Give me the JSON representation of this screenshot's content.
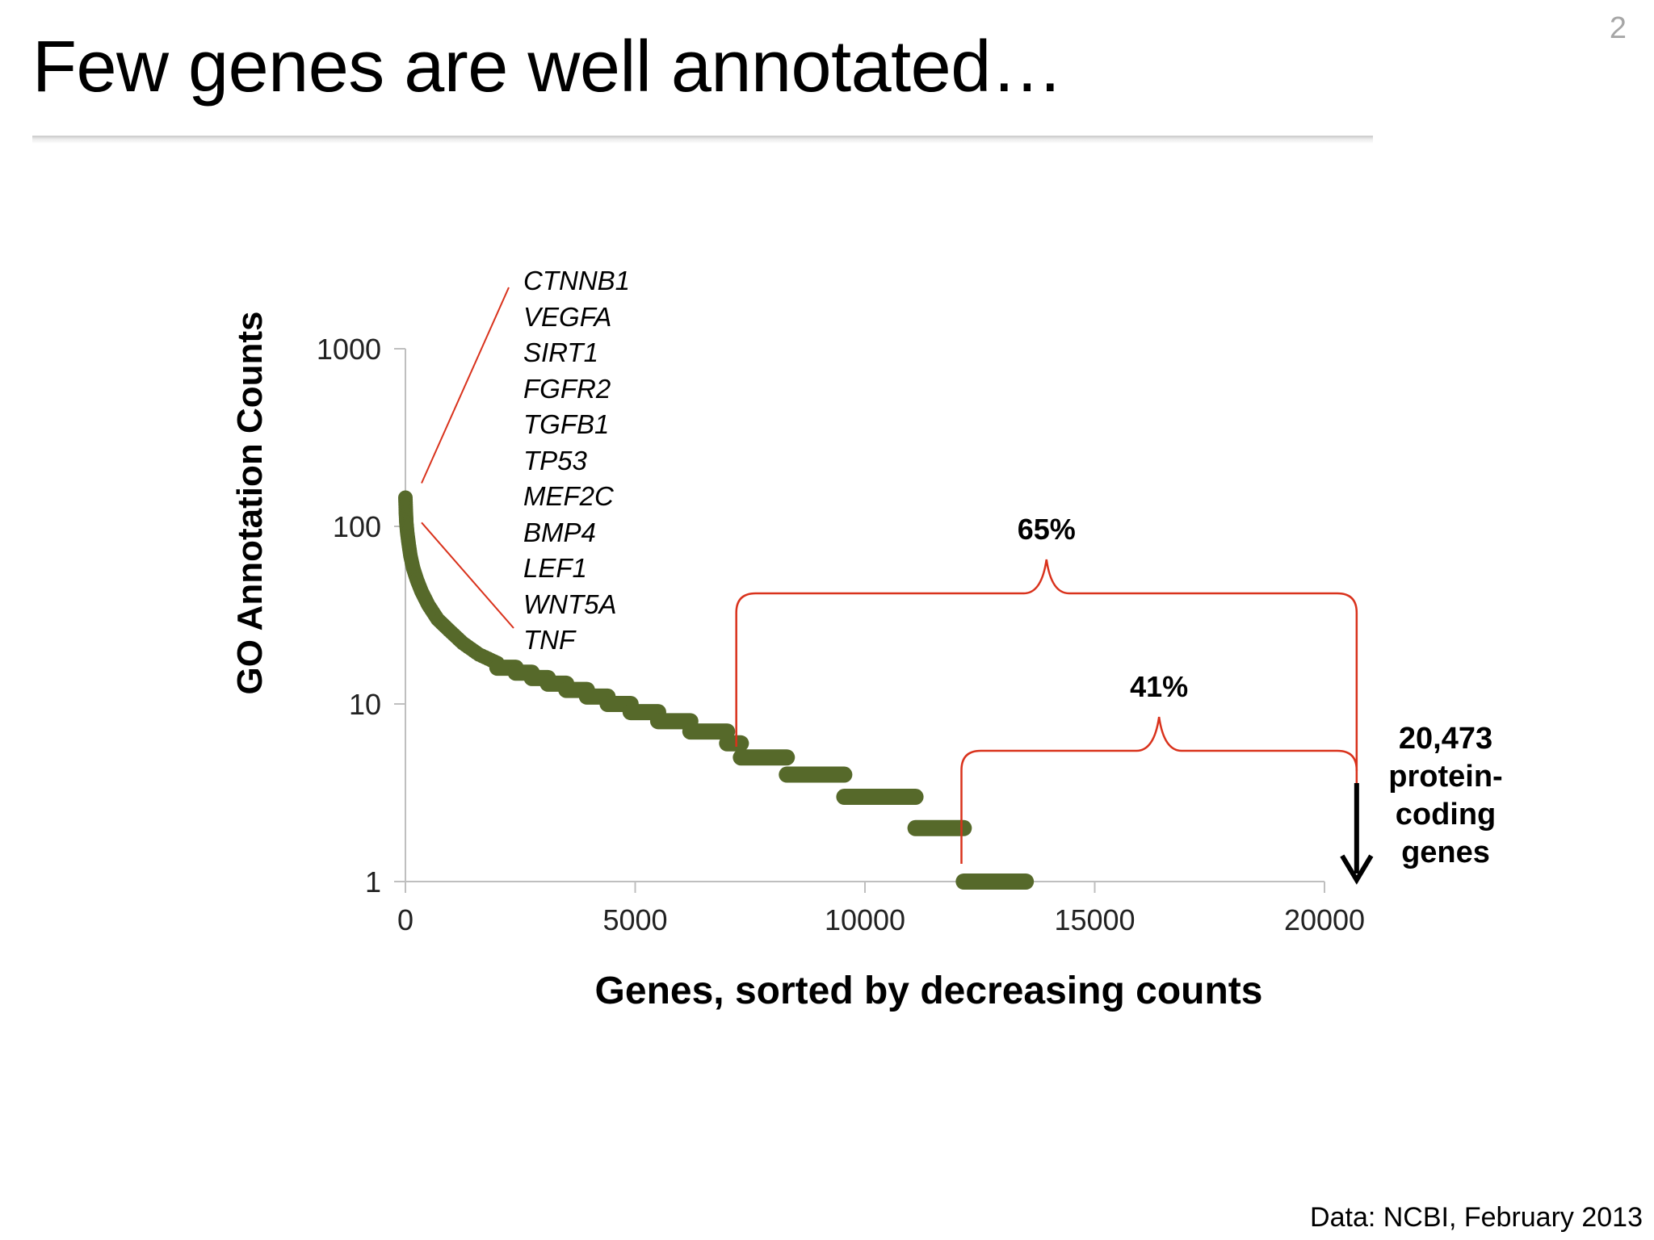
{
  "page_number": "2",
  "title": "Few genes are well annotated…",
  "source_note": "Data: NCBI, February 2013",
  "colors": {
    "points": "#56692a",
    "annotation": "#d9321c",
    "arrow": "#000000",
    "axis": "#bfbfbf"
  },
  "chart_data": {
    "type": "scatter",
    "xlabel": "Genes, sorted by decreasing counts",
    "ylabel": "GO Annotation Counts",
    "y_scale": "log",
    "xlim": [
      0,
      20000
    ],
    "ylim": [
      1,
      1000
    ],
    "x_ticks": [
      "0",
      "5000",
      "10000",
      "15000",
      "20000"
    ],
    "y_ticks": [
      "1",
      "10",
      "100",
      "1000"
    ],
    "grid": false,
    "legend": "none",
    "curve_head": [
      {
        "x": 0,
        "y": 145
      },
      {
        "x": 10,
        "y": 120
      },
      {
        "x": 20,
        "y": 105
      },
      {
        "x": 40,
        "y": 92
      },
      {
        "x": 70,
        "y": 80
      },
      {
        "x": 110,
        "y": 68
      },
      {
        "x": 170,
        "y": 58
      },
      {
        "x": 250,
        "y": 50
      },
      {
        "x": 350,
        "y": 43
      },
      {
        "x": 500,
        "y": 36
      },
      {
        "x": 700,
        "y": 30
      },
      {
        "x": 950,
        "y": 26
      },
      {
        "x": 1250,
        "y": 22
      },
      {
        "x": 1600,
        "y": 19
      },
      {
        "x": 2000,
        "y": 17
      }
    ],
    "plateaus": [
      {
        "y": 16,
        "x_start": 2000,
        "x_end": 2400
      },
      {
        "y": 15,
        "x_start": 2400,
        "x_end": 2750
      },
      {
        "y": 14,
        "x_start": 2750,
        "x_end": 3100
      },
      {
        "y": 13,
        "x_start": 3100,
        "x_end": 3500
      },
      {
        "y": 12,
        "x_start": 3500,
        "x_end": 3950
      },
      {
        "y": 11,
        "x_start": 3950,
        "x_end": 4400
      },
      {
        "y": 10,
        "x_start": 4400,
        "x_end": 4900
      },
      {
        "y": 9,
        "x_start": 4900,
        "x_end": 5500
      },
      {
        "y": 8,
        "x_start": 5500,
        "x_end": 6200
      },
      {
        "y": 7,
        "x_start": 6200,
        "x_end": 7000
      },
      {
        "y": 6,
        "x_start": 7000,
        "x_end": 7300
      },
      {
        "y": 5,
        "x_start": 7300,
        "x_end": 8300
      },
      {
        "y": 4,
        "x_start": 8300,
        "x_end": 9550
      },
      {
        "y": 3,
        "x_start": 9550,
        "x_end": 11100
      },
      {
        "y": 2,
        "x_start": 11100,
        "x_end": 12150
      },
      {
        "y": 1,
        "x_start": 12150,
        "x_end": 13500
      }
    ],
    "top_genes": [
      "CTNNB1",
      "VEGFA",
      "SIRT1",
      "FGFR2",
      "TGFB1",
      "TP53",
      "MEF2C",
      "BMP4",
      "LEF1",
      "WNT5A",
      "TNF"
    ],
    "brackets": [
      {
        "label": "65%",
        "x_start": 7200,
        "x_end": 20700
      },
      {
        "label": "41%",
        "x_start": 12100,
        "x_end": 20700
      }
    ],
    "total_marker": {
      "x": 20700,
      "label_lines": [
        "20,473",
        "protein-",
        "coding",
        "genes"
      ]
    }
  }
}
